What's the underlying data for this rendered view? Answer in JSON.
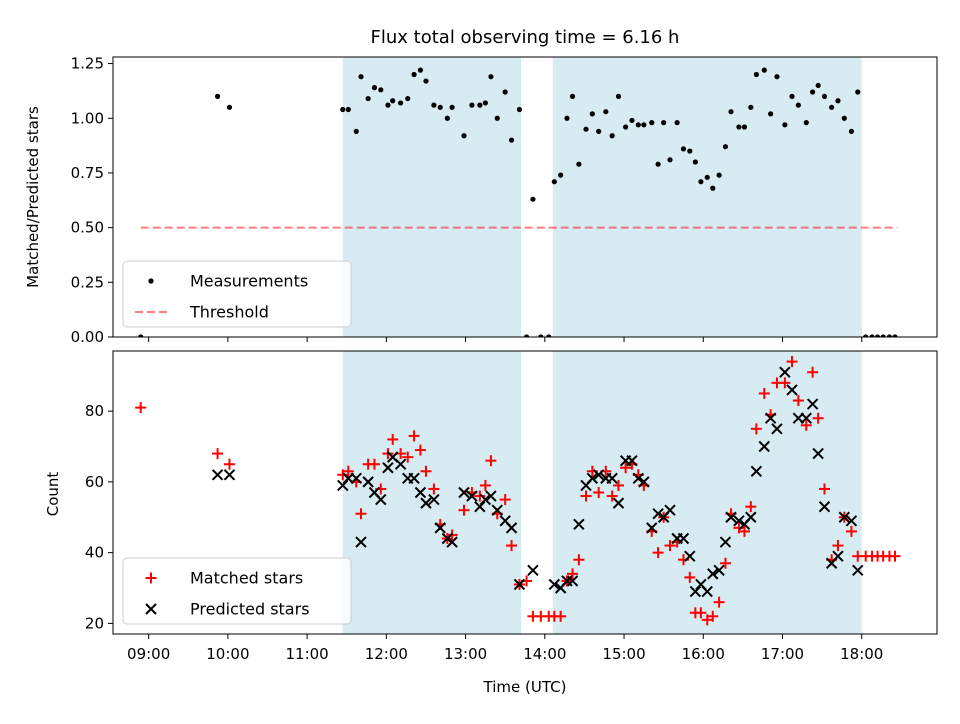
{
  "chart_data": [
    {
      "type": "scatter",
      "title": "Flux total observing time = 6.16 h",
      "xlabel": "",
      "ylabel": "Matched/Predicted stars",
      "xlim": [
        8.55,
        18.95
      ],
      "ylim": [
        0.0,
        1.28
      ],
      "yticks": [
        0.0,
        0.25,
        0.5,
        0.75,
        1.0,
        1.25
      ],
      "ytick_labels": [
        "0.00",
        "0.25",
        "0.50",
        "0.75",
        "1.00",
        "1.25"
      ],
      "shaded_intervals": [
        [
          11.45,
          13.7
        ],
        [
          14.1,
          18.0
        ]
      ],
      "threshold": {
        "value": 0.5,
        "x_range": [
          8.9,
          18.45
        ]
      },
      "legend": {
        "position": "lower-left",
        "entries": [
          "Measurements",
          "Threshold"
        ]
      },
      "series": [
        {
          "name": "Measurements",
          "points": [
            [
              8.9,
              0.0
            ],
            [
              9.87,
              1.1
            ],
            [
              10.02,
              1.05
            ],
            [
              11.45,
              1.04
            ],
            [
              11.52,
              1.04
            ],
            [
              11.62,
              0.94
            ],
            [
              11.68,
              1.19
            ],
            [
              11.77,
              1.09
            ],
            [
              11.85,
              1.14
            ],
            [
              11.93,
              1.13
            ],
            [
              12.02,
              1.06
            ],
            [
              12.08,
              1.08
            ],
            [
              12.18,
              1.07
            ],
            [
              12.27,
              1.09
            ],
            [
              12.35,
              1.2
            ],
            [
              12.43,
              1.22
            ],
            [
              12.5,
              1.17
            ],
            [
              12.6,
              1.06
            ],
            [
              12.68,
              1.05
            ],
            [
              12.77,
              1.0
            ],
            [
              12.83,
              1.05
            ],
            [
              12.98,
              0.92
            ],
            [
              13.08,
              1.06
            ],
            [
              13.18,
              1.06
            ],
            [
              13.25,
              1.07
            ],
            [
              13.32,
              1.19
            ],
            [
              13.4,
              1.0
            ],
            [
              13.5,
              1.12
            ],
            [
              13.58,
              0.9
            ],
            [
              13.68,
              1.04
            ],
            [
              13.77,
              0.0
            ],
            [
              13.85,
              0.63
            ],
            [
              13.95,
              0.0
            ],
            [
              14.05,
              0.0
            ],
            [
              14.12,
              0.71
            ],
            [
              14.2,
              0.74
            ],
            [
              14.28,
              1.0
            ],
            [
              14.35,
              1.1
            ],
            [
              14.43,
              0.79
            ],
            [
              14.52,
              0.95
            ],
            [
              14.6,
              1.02
            ],
            [
              14.68,
              0.94
            ],
            [
              14.77,
              1.03
            ],
            [
              14.85,
              0.92
            ],
            [
              14.93,
              1.1
            ],
            [
              15.02,
              0.96
            ],
            [
              15.1,
              0.99
            ],
            [
              15.18,
              0.97
            ],
            [
              15.25,
              0.97
            ],
            [
              15.35,
              0.98
            ],
            [
              15.43,
              0.79
            ],
            [
              15.5,
              0.98
            ],
            [
              15.58,
              0.81
            ],
            [
              15.67,
              0.98
            ],
            [
              15.75,
              0.86
            ],
            [
              15.83,
              0.85
            ],
            [
              15.9,
              0.8
            ],
            [
              15.97,
              0.71
            ],
            [
              16.05,
              0.73
            ],
            [
              16.12,
              0.68
            ],
            [
              16.2,
              0.74
            ],
            [
              16.28,
              0.87
            ],
            [
              16.35,
              1.03
            ],
            [
              16.45,
              0.96
            ],
            [
              16.52,
              0.96
            ],
            [
              16.6,
              1.05
            ],
            [
              16.67,
              1.2
            ],
            [
              16.77,
              1.22
            ],
            [
              16.85,
              1.02
            ],
            [
              16.93,
              1.19
            ],
            [
              17.03,
              0.97
            ],
            [
              17.12,
              1.1
            ],
            [
              17.2,
              1.06
            ],
            [
              17.3,
              0.98
            ],
            [
              17.38,
              1.12
            ],
            [
              17.45,
              1.15
            ],
            [
              17.53,
              1.1
            ],
            [
              17.62,
              1.05
            ],
            [
              17.7,
              1.08
            ],
            [
              17.78,
              1.0
            ],
            [
              17.87,
              0.94
            ],
            [
              17.95,
              1.12
            ],
            [
              18.05,
              0.0
            ],
            [
              18.13,
              0.0
            ],
            [
              18.2,
              0.0
            ],
            [
              18.27,
              0.0
            ],
            [
              18.35,
              0.0
            ],
            [
              18.42,
              0.0
            ]
          ]
        }
      ]
    },
    {
      "type": "scatter",
      "title": "",
      "xlabel": "Time (UTC)",
      "ylabel": "Count",
      "xlim": [
        8.55,
        18.95
      ],
      "ylim": [
        17.0,
        97.0
      ],
      "xticks": [
        9,
        10,
        11,
        12,
        13,
        14,
        15,
        16,
        17,
        18
      ],
      "xtick_labels": [
        "09:00",
        "10:00",
        "11:00",
        "12:00",
        "13:00",
        "14:00",
        "15:00",
        "16:00",
        "17:00",
        "18:00"
      ],
      "yticks": [
        20,
        40,
        60,
        80
      ],
      "ytick_labels": [
        "20",
        "40",
        "60",
        "80"
      ],
      "shaded_intervals": [
        [
          11.45,
          13.7
        ],
        [
          14.1,
          18.0
        ]
      ],
      "legend": {
        "position": "lower-left",
        "entries": [
          "Matched stars",
          "Predicted stars"
        ]
      },
      "series": [
        {
          "name": "Matched stars",
          "color": "#ff0000",
          "points": [
            [
              8.9,
              81
            ],
            [
              9.87,
              68
            ],
            [
              10.02,
              65
            ],
            [
              11.45,
              62
            ],
            [
              11.52,
              63
            ],
            [
              11.62,
              60
            ],
            [
              11.68,
              51
            ],
            [
              11.77,
              65
            ],
            [
              11.85,
              65
            ],
            [
              11.93,
              58
            ],
            [
              12.02,
              68
            ],
            [
              12.08,
              72
            ],
            [
              12.18,
              68
            ],
            [
              12.27,
              67
            ],
            [
              12.35,
              73
            ],
            [
              12.43,
              69
            ],
            [
              12.5,
              63
            ],
            [
              12.6,
              58
            ],
            [
              12.68,
              48
            ],
            [
              12.77,
              44
            ],
            [
              12.83,
              45
            ],
            [
              12.98,
              52
            ],
            [
              13.08,
              57
            ],
            [
              13.18,
              56
            ],
            [
              13.25,
              59
            ],
            [
              13.32,
              66
            ],
            [
              13.4,
              51
            ],
            [
              13.5,
              55
            ],
            [
              13.58,
              42
            ],
            [
              13.68,
              31
            ],
            [
              13.77,
              32
            ],
            [
              13.85,
              22
            ],
            [
              13.95,
              22
            ],
            [
              14.05,
              22
            ],
            [
              14.12,
              22
            ],
            [
              14.2,
              22
            ],
            [
              14.28,
              32
            ],
            [
              14.35,
              34
            ],
            [
              14.43,
              38
            ],
            [
              14.52,
              56
            ],
            [
              14.6,
              63
            ],
            [
              14.68,
              57
            ],
            [
              14.77,
              63
            ],
            [
              14.85,
              56
            ],
            [
              14.93,
              59
            ],
            [
              15.02,
              64
            ],
            [
              15.1,
              65
            ],
            [
              15.18,
              62
            ],
            [
              15.25,
              59
            ],
            [
              15.35,
              46
            ],
            [
              15.43,
              40
            ],
            [
              15.5,
              50
            ],
            [
              15.58,
              42
            ],
            [
              15.67,
              43
            ],
            [
              15.75,
              38
            ],
            [
              15.83,
              33
            ],
            [
              15.9,
              23
            ],
            [
              15.97,
              23
            ],
            [
              16.05,
              21
            ],
            [
              16.12,
              22
            ],
            [
              16.2,
              26
            ],
            [
              16.28,
              37
            ],
            [
              16.35,
              51
            ],
            [
              16.45,
              47
            ],
            [
              16.52,
              46
            ],
            [
              16.6,
              53
            ],
            [
              16.67,
              75
            ],
            [
              16.77,
              85
            ],
            [
              16.85,
              79
            ],
            [
              16.93,
              88
            ],
            [
              17.03,
              88
            ],
            [
              17.12,
              94
            ],
            [
              17.2,
              83
            ],
            [
              17.3,
              76
            ],
            [
              17.38,
              91
            ],
            [
              17.45,
              78
            ],
            [
              17.53,
              58
            ],
            [
              17.62,
              38
            ],
            [
              17.7,
              42
            ],
            [
              17.78,
              50
            ],
            [
              17.87,
              46
            ],
            [
              17.95,
              39
            ],
            [
              18.05,
              39
            ],
            [
              18.13,
              39
            ],
            [
              18.2,
              39
            ],
            [
              18.27,
              39
            ],
            [
              18.35,
              39
            ],
            [
              18.42,
              39
            ]
          ]
        },
        {
          "name": "Predicted stars",
          "color": "#000000",
          "points": [
            [
              9.87,
              62
            ],
            [
              10.02,
              62
            ],
            [
              11.45,
              59
            ],
            [
              11.52,
              61
            ],
            [
              11.62,
              61
            ],
            [
              11.68,
              43
            ],
            [
              11.77,
              60
            ],
            [
              11.85,
              57
            ],
            [
              11.93,
              55
            ],
            [
              12.02,
              64
            ],
            [
              12.08,
              67
            ],
            [
              12.18,
              65
            ],
            [
              12.27,
              61
            ],
            [
              12.35,
              61
            ],
            [
              12.43,
              57
            ],
            [
              12.5,
              54
            ],
            [
              12.6,
              55
            ],
            [
              12.68,
              47
            ],
            [
              12.77,
              44
            ],
            [
              12.83,
              43
            ],
            [
              12.98,
              57
            ],
            [
              13.08,
              56
            ],
            [
              13.18,
              53
            ],
            [
              13.25,
              55
            ],
            [
              13.32,
              56
            ],
            [
              13.4,
              52
            ],
            [
              13.5,
              49
            ],
            [
              13.58,
              47
            ],
            [
              13.68,
              31
            ],
            [
              13.85,
              35
            ],
            [
              14.12,
              31
            ],
            [
              14.2,
              30
            ],
            [
              14.28,
              32
            ],
            [
              14.35,
              32
            ],
            [
              14.43,
              48
            ],
            [
              14.52,
              59
            ],
            [
              14.6,
              61
            ],
            [
              14.68,
              62
            ],
            [
              14.77,
              61
            ],
            [
              14.85,
              61
            ],
            [
              14.93,
              54
            ],
            [
              15.02,
              66
            ],
            [
              15.1,
              66
            ],
            [
              15.18,
              61
            ],
            [
              15.25,
              60
            ],
            [
              15.35,
              47
            ],
            [
              15.43,
              51
            ],
            [
              15.5,
              50
            ],
            [
              15.58,
              52
            ],
            [
              15.67,
              44
            ],
            [
              15.75,
              44
            ],
            [
              15.83,
              39
            ],
            [
              15.9,
              29
            ],
            [
              15.97,
              31
            ],
            [
              16.05,
              29
            ],
            [
              16.12,
              34
            ],
            [
              16.2,
              35
            ],
            [
              16.28,
              43
            ],
            [
              16.35,
              50
            ],
            [
              16.45,
              49
            ],
            [
              16.52,
              48
            ],
            [
              16.6,
              50
            ],
            [
              16.67,
              63
            ],
            [
              16.77,
              70
            ],
            [
              16.85,
              78
            ],
            [
              16.93,
              75
            ],
            [
              17.03,
              91
            ],
            [
              17.12,
              86
            ],
            [
              17.2,
              78
            ],
            [
              17.3,
              78
            ],
            [
              17.38,
              82
            ],
            [
              17.45,
              68
            ],
            [
              17.53,
              53
            ],
            [
              17.62,
              37
            ],
            [
              17.7,
              39
            ],
            [
              17.78,
              50
            ],
            [
              17.87,
              49
            ],
            [
              17.95,
              35
            ]
          ]
        }
      ]
    }
  ]
}
